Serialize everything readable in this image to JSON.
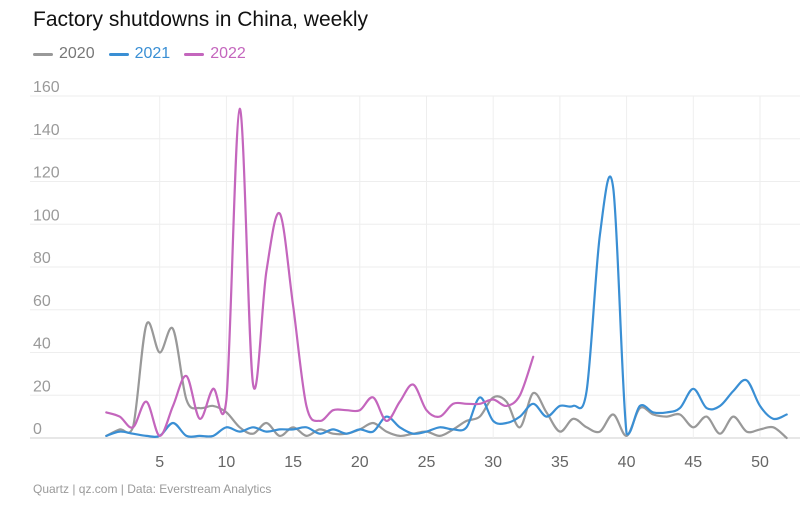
{
  "chart_data": {
    "type": "line",
    "title": "Factory shutdowns in China, weekly",
    "source": "Quartz | qz.com | Data: Everstream Analytics",
    "xlabel": "",
    "ylabel": "",
    "xlim": [
      0,
      53
    ],
    "ylim": [
      0,
      160
    ],
    "yticks": [
      0,
      20,
      40,
      60,
      80,
      100,
      120,
      140,
      160
    ],
    "xticks": [
      5,
      10,
      15,
      20,
      25,
      30,
      35,
      40,
      45,
      50
    ],
    "grid": true,
    "legend_position": "top-left",
    "series": [
      {
        "name": "2020",
        "color": "#999999",
        "x": [
          1,
          2,
          3,
          4,
          5,
          6,
          7,
          8,
          9,
          10,
          11,
          12,
          13,
          14,
          15,
          16,
          17,
          18,
          19,
          20,
          21,
          22,
          23,
          24,
          25,
          26,
          27,
          28,
          29,
          30,
          31,
          32,
          33,
          34,
          35,
          36,
          37,
          38,
          39,
          40,
          41,
          42,
          43,
          44,
          45,
          46,
          47,
          48,
          49,
          50,
          51,
          52
        ],
        "values": [
          1,
          4,
          5,
          53,
          40,
          51,
          18,
          14,
          15,
          12,
          5,
          2,
          7,
          1,
          5,
          1,
          4,
          2,
          2,
          4,
          7,
          3,
          1,
          2,
          3,
          1,
          4,
          8,
          10,
          19,
          17,
          5,
          21,
          12,
          3,
          9,
          5,
          3,
          11,
          1,
          14,
          11,
          10,
          11,
          5,
          10,
          2,
          10,
          3,
          4,
          5,
          0
        ]
      },
      {
        "name": "2021",
        "color": "#3a8fd4",
        "x": [
          1,
          2,
          3,
          4,
          5,
          6,
          7,
          8,
          9,
          10,
          11,
          12,
          13,
          14,
          15,
          16,
          17,
          18,
          19,
          20,
          21,
          22,
          23,
          24,
          25,
          26,
          27,
          28,
          29,
          30,
          31,
          32,
          33,
          34,
          35,
          36,
          37,
          38,
          39,
          40,
          41,
          42,
          43,
          44,
          45,
          46,
          47,
          48,
          49,
          50,
          51,
          52
        ],
        "values": [
          1,
          3,
          2,
          1,
          1,
          7,
          1,
          1,
          1,
          5,
          3,
          5,
          3,
          4,
          4,
          5,
          2,
          4,
          2,
          4,
          3,
          10,
          5,
          2,
          3,
          5,
          4,
          5,
          19,
          8,
          7,
          10,
          16,
          10,
          15,
          15,
          22,
          95,
          117,
          2,
          15,
          12,
          12,
          14,
          23,
          14,
          15,
          22,
          27,
          15,
          9,
          11
        ]
      },
      {
        "name": "2022",
        "color": "#c466bd",
        "x": [
          1,
          2,
          3,
          4,
          5,
          6,
          7,
          8,
          9,
          10,
          11,
          12,
          13,
          14,
          15,
          16,
          17,
          18,
          19,
          20,
          21,
          22,
          23,
          24,
          25,
          26,
          27,
          28,
          29,
          30,
          31,
          32,
          33
        ],
        "values": [
          12,
          10,
          5,
          17,
          1,
          15,
          29,
          9,
          23,
          18,
          154,
          25,
          78,
          105,
          62,
          15,
          8,
          13,
          13,
          13,
          19,
          8,
          17,
          25,
          13,
          10,
          16,
          16,
          16,
          18,
          15,
          20,
          38
        ]
      }
    ]
  }
}
